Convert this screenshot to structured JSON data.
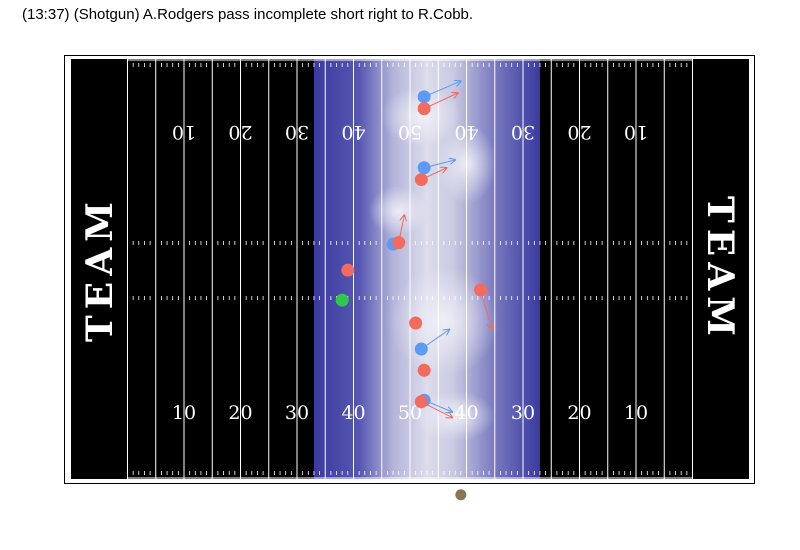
{
  "title": "(13:37) (Shotgun) A.Rodgers pass incomplete short right to R.Cobb.",
  "chart_data": {
    "type": "scatter",
    "title": "(13:37) (Shotgun) A.Rodgers pass incomplete short right to R.Cobb.",
    "x_range": [
      0,
      120
    ],
    "y_range": [
      0,
      53.3
    ],
    "end_zone_labels": [
      "TEAM",
      "TEAM"
    ],
    "yard_numbers_top": [
      "10",
      "20",
      "30",
      "40",
      "50",
      "40",
      "30",
      "20",
      "10"
    ],
    "yard_numbers_bottom": [
      "10",
      "20",
      "30",
      "40",
      "50",
      "40",
      "30",
      "20",
      "10"
    ],
    "density_band_x": [
      43,
      83
    ],
    "colors": {
      "field": "#000000",
      "lines": "#ffffff",
      "density_dark": "#3a3aa0",
      "density_light": "#ececf4",
      "offense": "#5b9bf5",
      "defense": "#f26b5e",
      "qb": "#2ec94a",
      "football": "#8b7355"
    },
    "series": [
      {
        "color": "#5b9bf5",
        "points": [
          {
            "x": 62.5,
            "y": 48.5,
            "dx": 6.5,
            "dy": 2.0
          },
          {
            "x": 62.5,
            "y": 39.5,
            "dx": 5.5,
            "dy": 1.0
          },
          {
            "x": 57.0,
            "y": 29.8,
            "dx": 0.5,
            "dy": 0.8
          },
          {
            "x": 62.0,
            "y": 16.5,
            "dx": 5.0,
            "dy": 2.5
          },
          {
            "x": 62.5,
            "y": 10.0,
            "dx": 5.0,
            "dy": -1.5
          }
        ]
      },
      {
        "color": "#f26b5e",
        "points": [
          {
            "x": 62.5,
            "y": 47.0,
            "dx": 6.0,
            "dy": 2.0
          },
          {
            "x": 62.0,
            "y": 38.0,
            "dx": 4.5,
            "dy": 1.5
          },
          {
            "x": 58.0,
            "y": 30.0,
            "dx": 1.0,
            "dy": 3.5
          },
          {
            "x": 49.0,
            "y": 26.5,
            "dx": 0.2,
            "dy": 0.6
          },
          {
            "x": 72.5,
            "y": 24.0,
            "dx": 2.0,
            "dy": -5.0
          },
          {
            "x": 61.0,
            "y": 19.8,
            "dx": 0.5,
            "dy": 0.5
          },
          {
            "x": 62.5,
            "y": 13.8,
            "dx": 0.4,
            "dy": 0.4
          },
          {
            "x": 62.0,
            "y": 9.8,
            "dx": 5.5,
            "dy": -2.0
          }
        ]
      },
      {
        "color": "#2ec94a",
        "points": [
          {
            "x": 48.0,
            "y": 22.7,
            "dx": 0,
            "dy": 0
          }
        ]
      }
    ],
    "football": {
      "x": 69.0,
      "y": -2.0
    }
  }
}
